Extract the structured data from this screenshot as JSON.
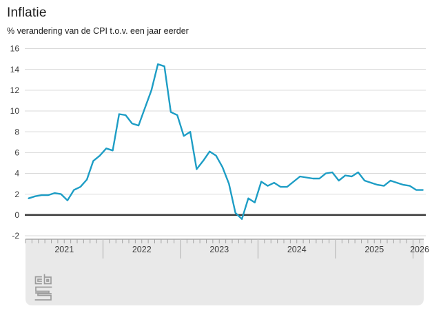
{
  "header": {
    "title": "Inflatie",
    "subtitle": "% verandering van de CPI t.o.v. een jaar eerder"
  },
  "chart_data": {
    "type": "line",
    "title": "Inflatie",
    "subtitle": "% verandering van de CPI t.o.v. een jaar eerder",
    "unit": "%",
    "ylim": [
      -2,
      16
    ],
    "y_ticks": [
      16,
      14,
      12,
      10,
      8,
      6,
      4,
      2,
      0,
      -2
    ],
    "zero_line": true,
    "grid": true,
    "x_tick_interval": "month",
    "x_start": "2021-01",
    "x_end": "2026-02",
    "x_year_labels": [
      "2021",
      "2022",
      "2023",
      "2024",
      "2025",
      "2026"
    ],
    "series": [
      {
        "name": "Inflatie (CPI)",
        "values_by_year": {
          "2021": [
            1.6,
            1.8,
            1.9,
            1.9,
            2.1,
            2.0,
            1.4,
            2.4,
            2.7,
            3.4,
            5.2,
            5.7
          ],
          "2022": [
            6.4,
            6.2,
            9.7,
            9.6,
            8.8,
            8.6,
            10.3,
            12.0,
            14.5,
            14.3,
            9.9,
            9.6
          ],
          "2023": [
            7.6,
            8.0,
            4.4,
            5.2,
            6.1,
            5.7,
            4.6,
            3.0,
            0.2,
            -0.4,
            1.6,
            1.2
          ],
          "2024": [
            3.2,
            2.8,
            3.1,
            2.7,
            2.7,
            3.2,
            3.7,
            3.6,
            3.5,
            3.5,
            4.0,
            4.1
          ],
          "2025": [
            3.3,
            3.8,
            3.7,
            4.1,
            3.3,
            3.1,
            2.9,
            2.8,
            3.3,
            3.1,
            2.9,
            2.8
          ],
          "2026": [
            2.4,
            2.4
          ]
        }
      }
    ],
    "legend": {
      "shown": false
    }
  },
  "colors": {
    "line": "#1d9dc5",
    "grid": "#d9d9d9",
    "zero_line": "#3c3c3c",
    "axis_band": "#e9e9e9",
    "axis_band_border": "#a9a9a9",
    "axis_tick": "#a3a3a3",
    "year_divider": "#bdbdbd",
    "text": "#1b1b1b",
    "axis_text": "#3d3d3d",
    "logo": "#9c9c9c"
  },
  "logo": {
    "label": "CBS"
  }
}
